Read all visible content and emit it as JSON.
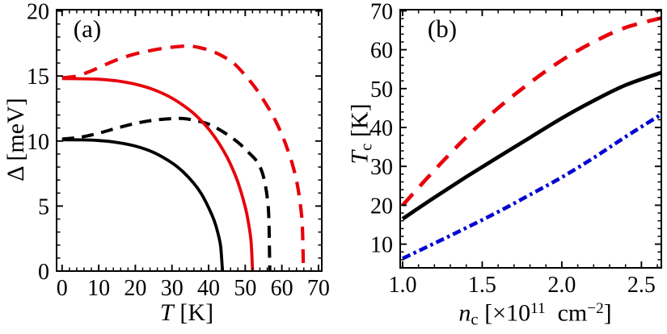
{
  "figure": {
    "background": "#ffffff",
    "colors": {
      "black": "#000000",
      "red": "#e8000b",
      "blue": "#0000d2"
    },
    "panel_a": {
      "label": "(a)",
      "xlabel": {
        "var": "T",
        "unit": "[K]"
      },
      "ylabel": "Δ [meV]"
    },
    "panel_b": {
      "label": "(b)",
      "xlabel": {
        "var": "n",
        "sub": "c",
        "open": "[×10",
        "exp1": "11",
        "mid": "cm",
        "exp2": "−2",
        "close": "]"
      },
      "ylabel": {
        "var": "T",
        "sub": "c",
        "unit": "[K]"
      }
    }
  },
  "chart_data": [
    {
      "type": "line",
      "panel": "a",
      "title": "(a)",
      "xlabel": "T [K]",
      "ylabel": "Δ [meV]",
      "xlim": [
        -1.5,
        70.9
      ],
      "ylim": [
        0,
        20.1
      ],
      "grid": false,
      "legend": "none",
      "xticks": {
        "values": [
          0,
          10,
          20,
          30,
          40,
          50,
          60,
          70
        ],
        "labels": [
          "0",
          "10",
          "20",
          "30",
          "40",
          "50",
          "60",
          "70"
        ],
        "minor_step": 2
      },
      "yticks": {
        "values": [
          0,
          5,
          10,
          15,
          20
        ],
        "labels": [
          "0",
          "5",
          "10",
          "15",
          "20"
        ],
        "minor_step": 1
      },
      "series": [
        {
          "name": "black-dashed-gap",
          "color": "#000000",
          "style": "dashed",
          "dash": "15 9.5",
          "width": 4.0,
          "x": [
            0,
            5,
            10,
            15,
            20,
            25,
            30,
            33,
            36,
            40,
            44,
            48,
            51,
            53,
            54.5,
            55.5,
            56.2,
            56.5,
            56.7
          ],
          "y": [
            10.15,
            10.3,
            10.6,
            11.0,
            11.35,
            11.6,
            11.72,
            11.73,
            11.6,
            11.3,
            10.7,
            9.9,
            9.1,
            8.5,
            7.7,
            6.6,
            5.2,
            3.5,
            0
          ]
        },
        {
          "name": "black-solid-gap",
          "color": "#000000",
          "style": "solid",
          "width": 3.8,
          "x": [
            0,
            5,
            10,
            15,
            20,
            25,
            30,
            33,
            36,
            38,
            40,
            41.5,
            42.5,
            43.3,
            43.8
          ],
          "y": [
            10.1,
            10.09,
            10.04,
            9.89,
            9.61,
            9.12,
            8.32,
            7.64,
            6.74,
            5.95,
            4.88,
            3.9,
            2.97,
            1.86,
            0
          ]
        },
        {
          "name": "red-solid-gap",
          "color": "#e8000b",
          "style": "solid",
          "width": 3.8,
          "x": [
            0,
            5,
            10,
            15,
            20,
            25,
            30,
            35,
            38,
            41,
            44,
            46,
            48,
            50,
            51,
            51.6,
            52
          ],
          "y": [
            14.8,
            14.79,
            14.75,
            14.62,
            14.37,
            13.95,
            13.3,
            12.34,
            11.56,
            10.57,
            9.29,
            8.21,
            6.83,
            4.93,
            3.52,
            2.24,
            0
          ]
        },
        {
          "name": "red-dashed-gap",
          "color": "#e8000b",
          "style": "dashed",
          "dash": "17 11",
          "width": 4.2,
          "x": [
            0,
            4,
            8,
            12,
            16,
            20,
            24,
            28,
            32,
            35,
            38,
            41,
            44,
            47,
            50,
            53,
            56,
            58,
            60,
            61.5,
            63,
            64.2,
            65.1,
            65.6,
            65.9
          ],
          "y": [
            14.85,
            15.0,
            15.4,
            15.9,
            16.35,
            16.7,
            16.95,
            17.15,
            17.27,
            17.3,
            17.15,
            16.9,
            16.5,
            15.95,
            15.05,
            14.0,
            12.7,
            11.7,
            10.5,
            9.4,
            8.1,
            6.7,
            5.0,
            3.4,
            0
          ]
        }
      ]
    },
    {
      "type": "line",
      "panel": "b",
      "title": "(b)",
      "xlabel": "n_c [×10^11 cm^-2]",
      "ylabel": "T_c [K]",
      "xlim": [
        0.985,
        2.625
      ],
      "ylim": [
        3.9,
        70.3
      ],
      "grid": false,
      "legend": "none",
      "xticks": {
        "values": [
          1.0,
          1.5,
          2.0,
          2.5
        ],
        "labels": [
          "1.0",
          "1.5",
          "2.0",
          "2.5"
        ],
        "minor_step": 0.1
      },
      "yticks": {
        "values": [
          10,
          20,
          30,
          40,
          50,
          60,
          70
        ],
        "labels": [
          "10",
          "20",
          "30",
          "40",
          "50",
          "60",
          "70"
        ],
        "minor_step": 2
      },
      "series": [
        {
          "name": "blue-dashdot-Tc",
          "color": "#0000d2",
          "style": "dashdot",
          "dash": "10.5 4.5 3.5 4.5",
          "width": 4.6,
          "x": [
            1.0,
            1.2,
            1.4,
            1.6,
            1.8,
            2.0,
            2.2,
            2.4,
            2.63
          ],
          "y": [
            6.3,
            10.2,
            14.2,
            18.3,
            22.7,
            27.2,
            32.2,
            37.6,
            43.5
          ]
        },
        {
          "name": "black-solid-Tc",
          "color": "#000000",
          "style": "solid",
          "width": 4.7,
          "x": [
            1.0,
            1.2,
            1.4,
            1.6,
            1.8,
            2.0,
            2.2,
            2.4,
            2.63
          ],
          "y": [
            16.5,
            22.0,
            27.3,
            32.4,
            37.4,
            42.4,
            46.9,
            50.9,
            54.2
          ]
        },
        {
          "name": "red-dashed-Tc",
          "color": "#e8000b",
          "style": "dashed",
          "dash": "19 13",
          "width": 4.7,
          "x": [
            1.0,
            1.2,
            1.4,
            1.6,
            1.8,
            2.0,
            2.2,
            2.4,
            2.63
          ],
          "y": [
            20.0,
            29.0,
            37.5,
            45.0,
            51.5,
            57.3,
            62.0,
            65.7,
            68.2
          ]
        }
      ]
    }
  ]
}
